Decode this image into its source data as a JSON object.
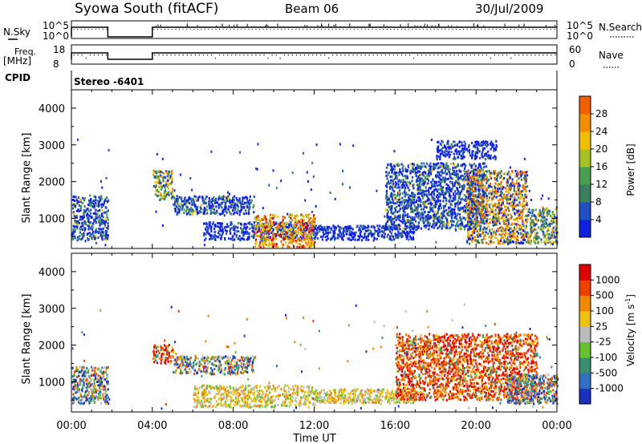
{
  "header": {
    "station": "Syowa South (fitACF)",
    "beam": "Beam 06",
    "date": "30/Jul/2009"
  },
  "nsky_panel": {
    "left_label": "N.Sky",
    "right_label": "N.Search",
    "left_ticks": [
      "10^5",
      "10^0"
    ],
    "right_ticks": [
      "10^5",
      "10^0"
    ]
  },
  "freq_panel": {
    "left_label_line1": "Freq.",
    "left_label_line2": "[MHz]",
    "right_label": "Nave",
    "left_ticks": [
      "18",
      "8"
    ],
    "right_ticks": [
      "60",
      "0"
    ]
  },
  "cpid": {
    "label": "CPID",
    "value": "Stereo -6401"
  },
  "chart_data": [
    {
      "type": "heatmap",
      "name": "power",
      "ylabel": "Slant Range [km]",
      "ylim": [
        180,
        4500
      ],
      "yticks": [
        "1000",
        "2000",
        "3000",
        "4000"
      ],
      "ytick_values": [
        1000,
        2000,
        3000,
        4000
      ],
      "xlim_hours": [
        0,
        24
      ],
      "colorbar": {
        "label": "Power [dB]",
        "range": [
          0,
          32
        ],
        "ticks": [
          "4",
          "8",
          "12",
          "16",
          "20",
          "24",
          "28"
        ],
        "tick_values": [
          4,
          8,
          12,
          16,
          20,
          24,
          28
        ],
        "colors": [
          "#1020e0",
          "#2050c0",
          "#3a7f60",
          "#4aa050",
          "#a8c020",
          "#f0c000",
          "#f09000",
          "#f06000",
          "#e00000"
        ]
      },
      "echo_regions_ut_hours_km": [
        {
          "t": [
            0.0,
            1.8
          ],
          "r": [
            400,
            1600
          ],
          "level": "low-mid"
        },
        {
          "t": [
            4.0,
            5.0
          ],
          "r": [
            1500,
            2300
          ],
          "level": "mid"
        },
        {
          "t": [
            5.0,
            9.0
          ],
          "r": [
            1100,
            1600
          ],
          "level": "low-mid"
        },
        {
          "t": [
            6.5,
            12.0
          ],
          "r": [
            400,
            900
          ],
          "level": "low"
        },
        {
          "t": [
            9.0,
            12.0
          ],
          "r": [
            200,
            1100
          ],
          "level": "high"
        },
        {
          "t": [
            12.0,
            17.0
          ],
          "r": [
            400,
            800
          ],
          "level": "low"
        },
        {
          "t": [
            15.5,
            20.5
          ],
          "r": [
            700,
            2500
          ],
          "level": "low-mid"
        },
        {
          "t": [
            19.5,
            22.5
          ],
          "r": [
            300,
            2300
          ],
          "level": "mid-high"
        },
        {
          "t": [
            18.0,
            21.0
          ],
          "r": [
            2600,
            3100
          ],
          "level": "low"
        },
        {
          "t": [
            22.5,
            24.0
          ],
          "r": [
            300,
            1300
          ],
          "level": "mid"
        }
      ]
    },
    {
      "type": "heatmap",
      "name": "velocity",
      "ylabel": "Slant Range [km]",
      "ylim": [
        180,
        4500
      ],
      "yticks": [
        "1000",
        "2000",
        "3000",
        "4000"
      ],
      "ytick_values": [
        1000,
        2000,
        3000,
        4000
      ],
      "xlabel": "Time UT",
      "xticks": [
        "00:00",
        "04:00",
        "08:00",
        "12:00",
        "16:00",
        "20:00",
        "00:00"
      ],
      "xtick_values": [
        0,
        4,
        8,
        12,
        16,
        20,
        24
      ],
      "colorbar": {
        "label": "Velocity [m s",
        "label_superscript": "-1",
        "label_close": "]",
        "ticks": [
          "1000",
          "500",
          "100",
          "25",
          "-25",
          "-100",
          "-500",
          "-1000"
        ],
        "colors": [
          "#1a30c0",
          "#3070c0",
          "#3a8f70",
          "#66c030",
          "#bbbbbb",
          "#f0c010",
          "#f08800",
          "#f04000",
          "#e00000"
        ]
      },
      "echo_regions_ut_hours_km": [
        {
          "t": [
            0.0,
            1.8
          ],
          "r": [
            400,
            1400
          ],
          "sign": "mixed"
        },
        {
          "t": [
            4.0,
            5.0
          ],
          "r": [
            1500,
            2000
          ],
          "sign": "away"
        },
        {
          "t": [
            5.0,
            9.0
          ],
          "r": [
            1200,
            1700
          ],
          "sign": "mixed"
        },
        {
          "t": [
            6.0,
            12.0
          ],
          "r": [
            300,
            900
          ],
          "sign": "away-weak"
        },
        {
          "t": [
            12.0,
            17.0
          ],
          "r": [
            400,
            800
          ],
          "sign": "away-weak"
        },
        {
          "t": [
            16.0,
            23.0
          ],
          "r": [
            500,
            2300
          ],
          "sign": "away"
        },
        {
          "t": [
            21.5,
            24.0
          ],
          "r": [
            400,
            1200
          ],
          "sign": "mixed"
        }
      ]
    }
  ]
}
